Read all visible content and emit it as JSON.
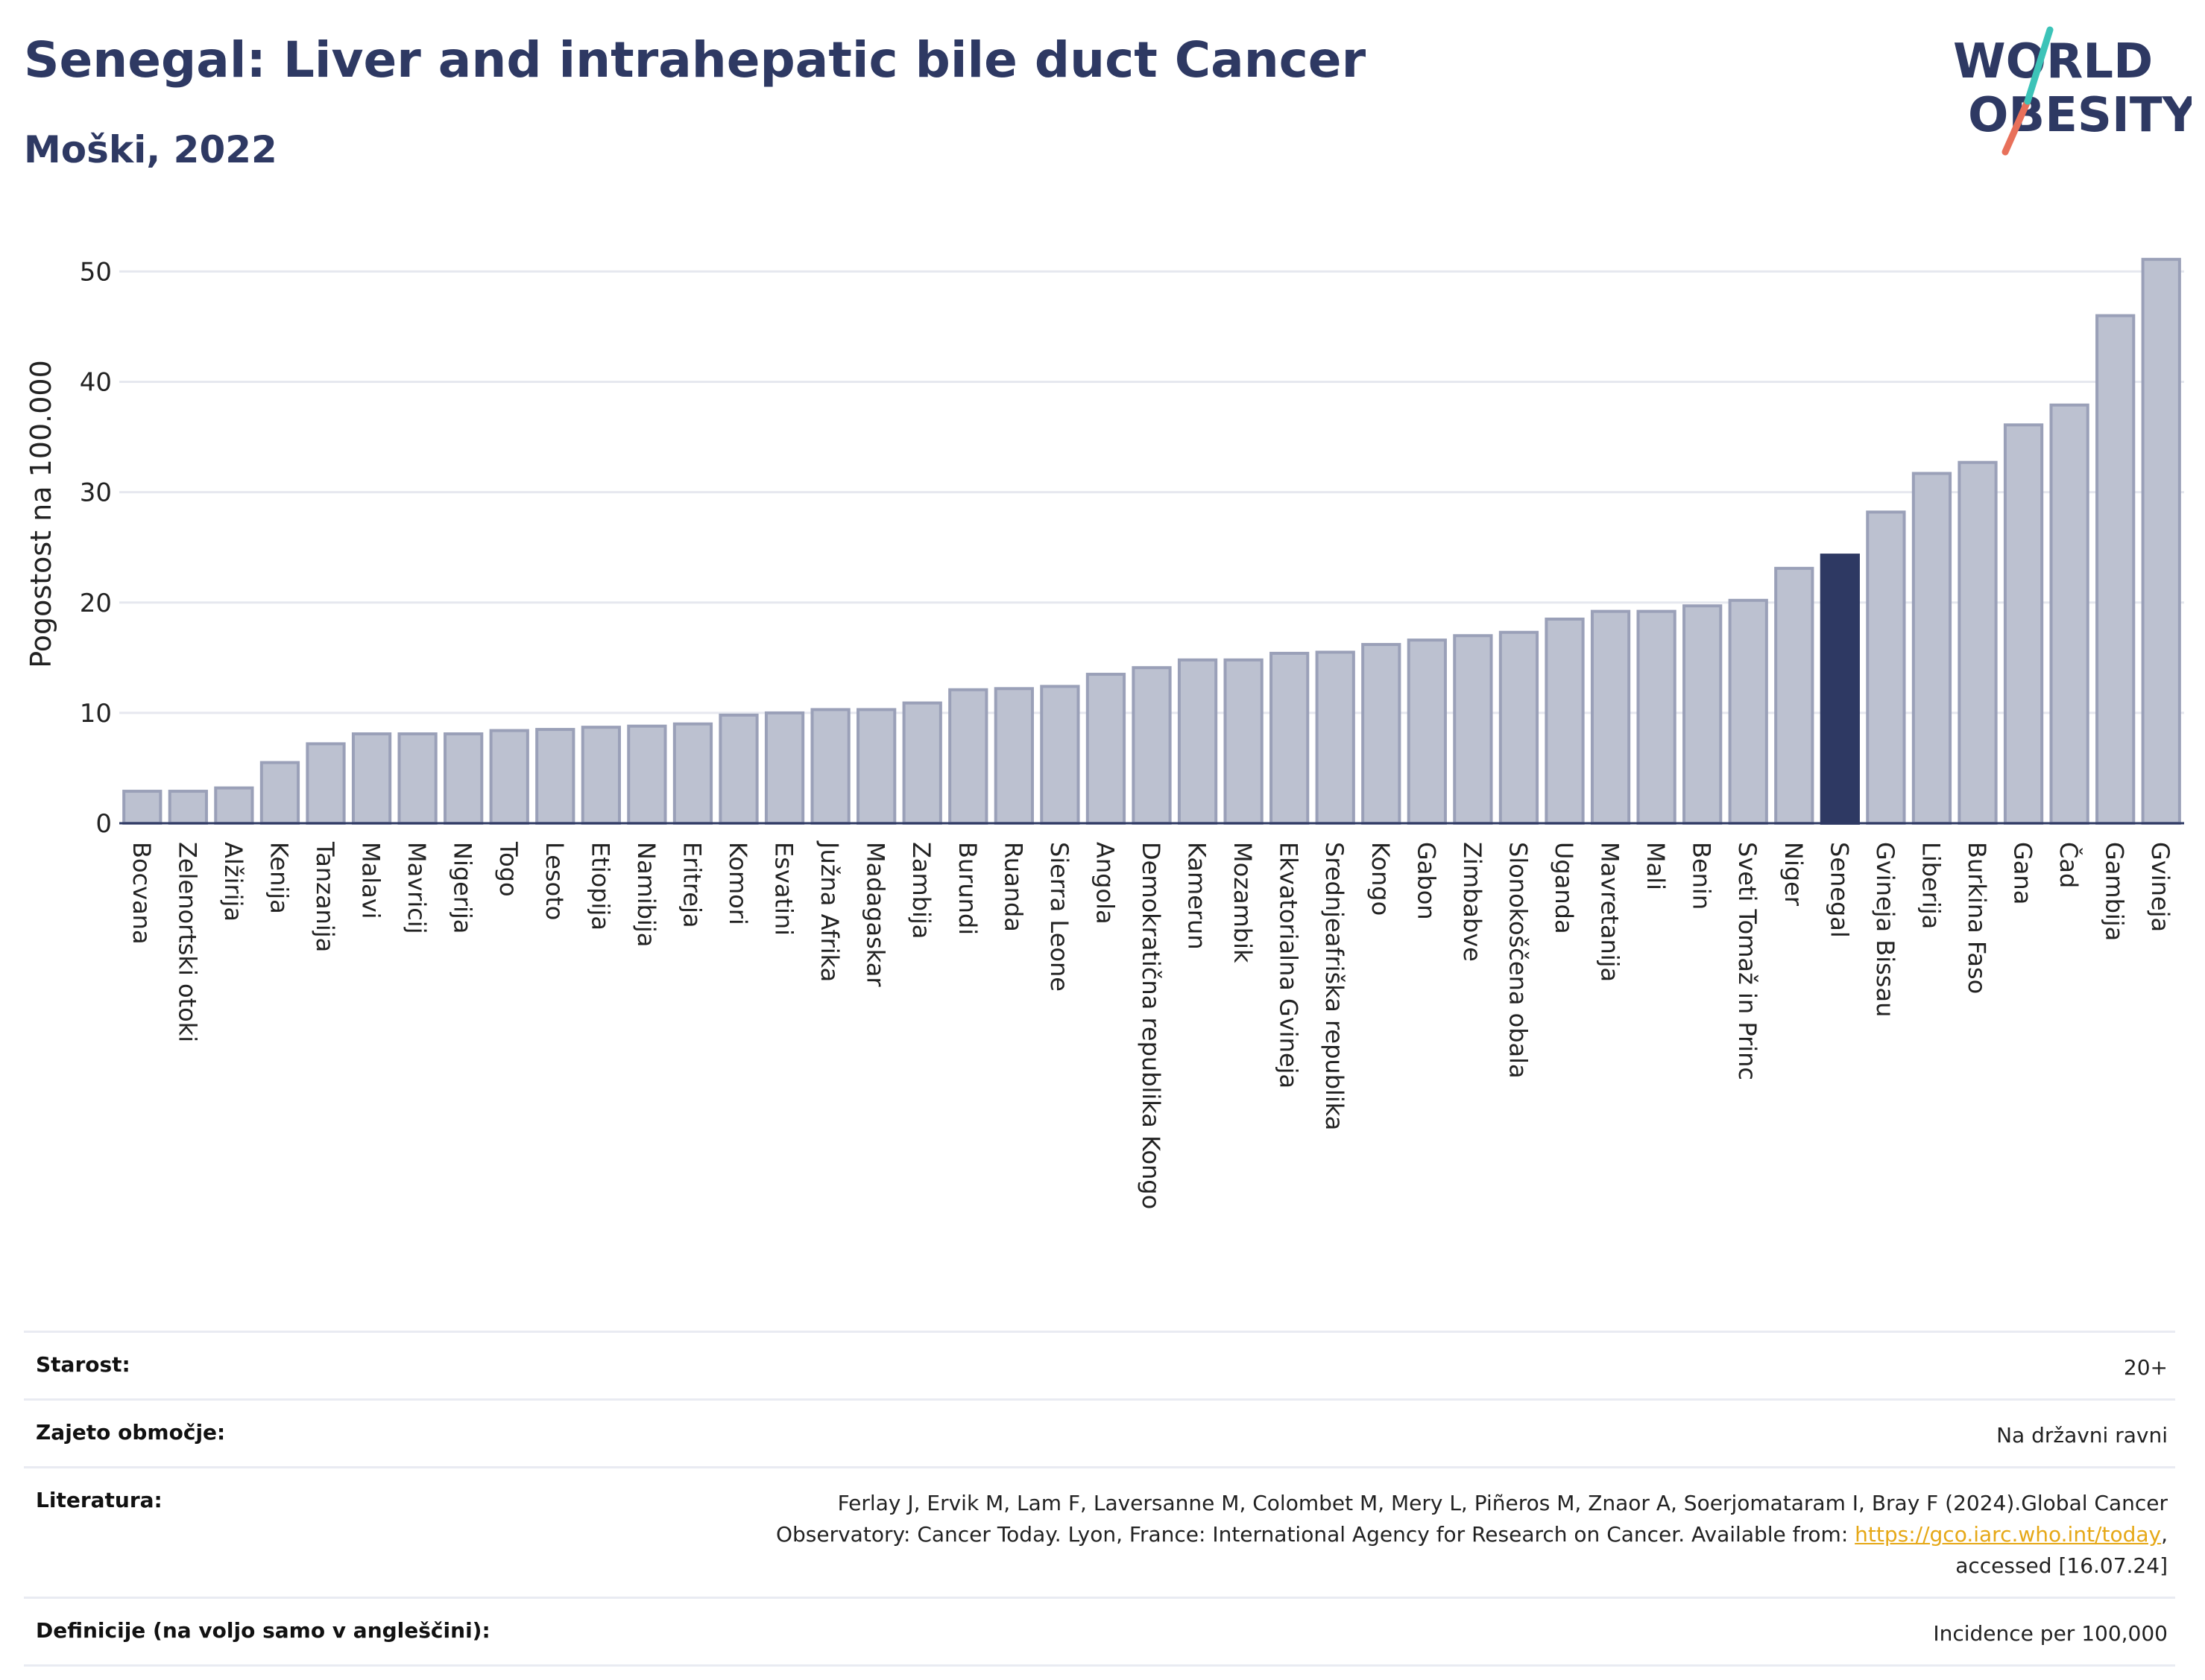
{
  "title": "Senegal: Liver and intrahepatic bile duct Cancer",
  "subtitle": "Moški, 2022",
  "logo": {
    "line1": "WORLD",
    "line2": "OBESITY"
  },
  "colors": {
    "bar": "#bcc1d0",
    "bar_stroke": "#9aa0b8",
    "highlight": "#2e3963",
    "title": "#2e3963",
    "grid": "#e6e8ef"
  },
  "chart_data": {
    "type": "bar",
    "ylabel": "Pogostost na 100.000",
    "ylim": [
      0,
      53
    ],
    "yticks": [
      0,
      10,
      20,
      30,
      40,
      50
    ],
    "grid": true,
    "highlight": "Senegal",
    "categories": [
      "Bocvana",
      "Zelenortski otoki",
      "Alžirija",
      "Kenija",
      "Tanzanija",
      "Malavi",
      "Mavricij",
      "Nigerija",
      "Togo",
      "Lesoto",
      "Etiopija",
      "Namibija",
      "Eritreja",
      "Komori",
      "Esvatini",
      "Južna Afrika",
      "Madagaskar",
      "Zambija",
      "Burundi",
      "Ruanda",
      "Sierra Leone",
      "Angola",
      "Demokratična republika Kongo",
      "Kamerun",
      "Mozambik",
      "Ekvatorialna Gvineja",
      "Srednjeafriška republika",
      "Kongo",
      "Gabon",
      "Zimbabve",
      "Slonokoščena obala",
      "Uganda",
      "Mavretanija",
      "Mali",
      "Benin",
      "Sveti Tomaž in Princ",
      "Niger",
      "Senegal",
      "Gvineja Bissau",
      "Liberija",
      "Burkina Faso",
      "Gana",
      "Čad",
      "Gambija",
      "Gvineja"
    ],
    "values": [
      2.9,
      2.9,
      3.2,
      5.5,
      7.2,
      8.1,
      8.1,
      8.1,
      8.4,
      8.5,
      8.7,
      8.8,
      9.0,
      9.8,
      10.0,
      10.3,
      10.3,
      10.9,
      12.1,
      12.2,
      12.4,
      13.5,
      14.1,
      14.8,
      14.8,
      15.4,
      15.5,
      16.2,
      16.6,
      17.0,
      17.3,
      18.5,
      19.2,
      19.2,
      19.7,
      20.2,
      23.1,
      24.3,
      28.2,
      31.7,
      32.7,
      36.1,
      37.9,
      46.0,
      51.1
    ]
  },
  "info": {
    "age_label": "Starost:",
    "age_value": "20+",
    "area_label": "Zajeto območje:",
    "area_value": "Na državni ravni",
    "literature_label": "Literatura:",
    "literature_line1": "Ferlay J, Ervik M, Lam F, Laversanne M, Colombet M, Mery L, Piñeros M, Znaor A, Soerjomataram I, Bray F (2024).Global Cancer",
    "literature_line2": "Observatory: Cancer Today. Lyon, France: International Agency for Research on Cancer. Available from:",
    "literature_link": "https://gco.iarc.who.int/today",
    "literature_line3": "accessed [16.07.24]",
    "definitions_label": "Definicije (na voljo samo v angleščini):",
    "definitions_value": "Incidence per 100,000"
  }
}
